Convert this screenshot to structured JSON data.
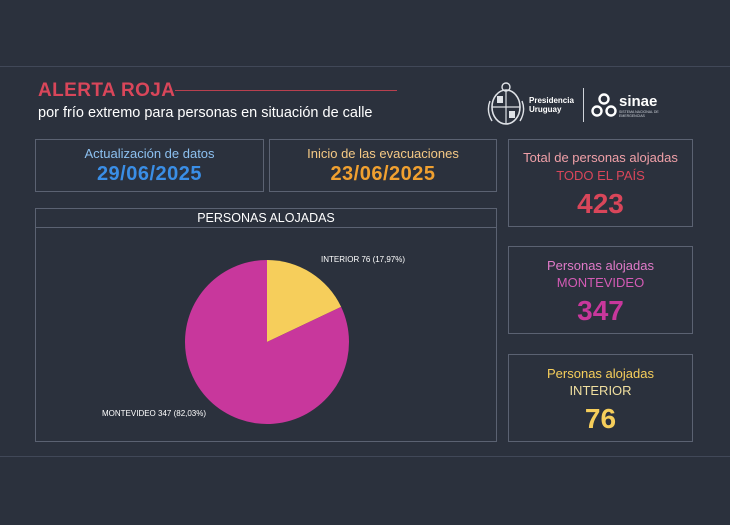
{
  "header": {
    "title": "ALERTA ROJA",
    "subtitle": "por frío extremo para personas en situación de calle",
    "logos": {
      "presidencia_line1": "Presidencia",
      "presidencia_line2": "Uruguay",
      "sinae": "sinae",
      "sinae_sub": "SISTEMA NACIONAL DE EMERGENCIAS",
      "icons": [
        "uruguay-coat-of-arms-icon",
        "sinae-logo-icon"
      ]
    }
  },
  "dates": {
    "update_label": "Actualización de datos",
    "update_value": "29/06/2025",
    "evac_label": "Inicio de las evacuaciones",
    "evac_value": "23/06/2025"
  },
  "stats": {
    "total": {
      "label": "Total de personas alojadas",
      "sublabel": "TODO EL PAÍS",
      "value": "423"
    },
    "montevideo": {
      "label": "Personas alojadas",
      "sublabel": "MONTEVIDEO",
      "value": "347"
    },
    "interior": {
      "label": "Personas alojadas",
      "sublabel": "INTERIOR",
      "value": "76"
    }
  },
  "colors": {
    "background": "#2b313d",
    "title_red": "#d9465a",
    "date_blue": "#3a8ee6",
    "date_orange": "#f0a030",
    "total_red": "#d9465a",
    "total_label": "#f0a0a8",
    "montevideo_magenta": "#c8379c",
    "montevideo_label": "#e07ac8",
    "interior_yellow": "#f6ce5b"
  },
  "chart_data": {
    "type": "pie",
    "title": "PERSONAS ALOJADAS",
    "slices": [
      {
        "name": "INTERIOR",
        "value": 76,
        "percent": "17,97%",
        "label": "INTERIOR 76 (17,97%)",
        "color": "#f6ce5b"
      },
      {
        "name": "MONTEVIDEO",
        "value": 347,
        "percent": "82,03%",
        "label": "MONTEVIDEO 347 (82,03%)",
        "color": "#c8379c"
      }
    ]
  }
}
